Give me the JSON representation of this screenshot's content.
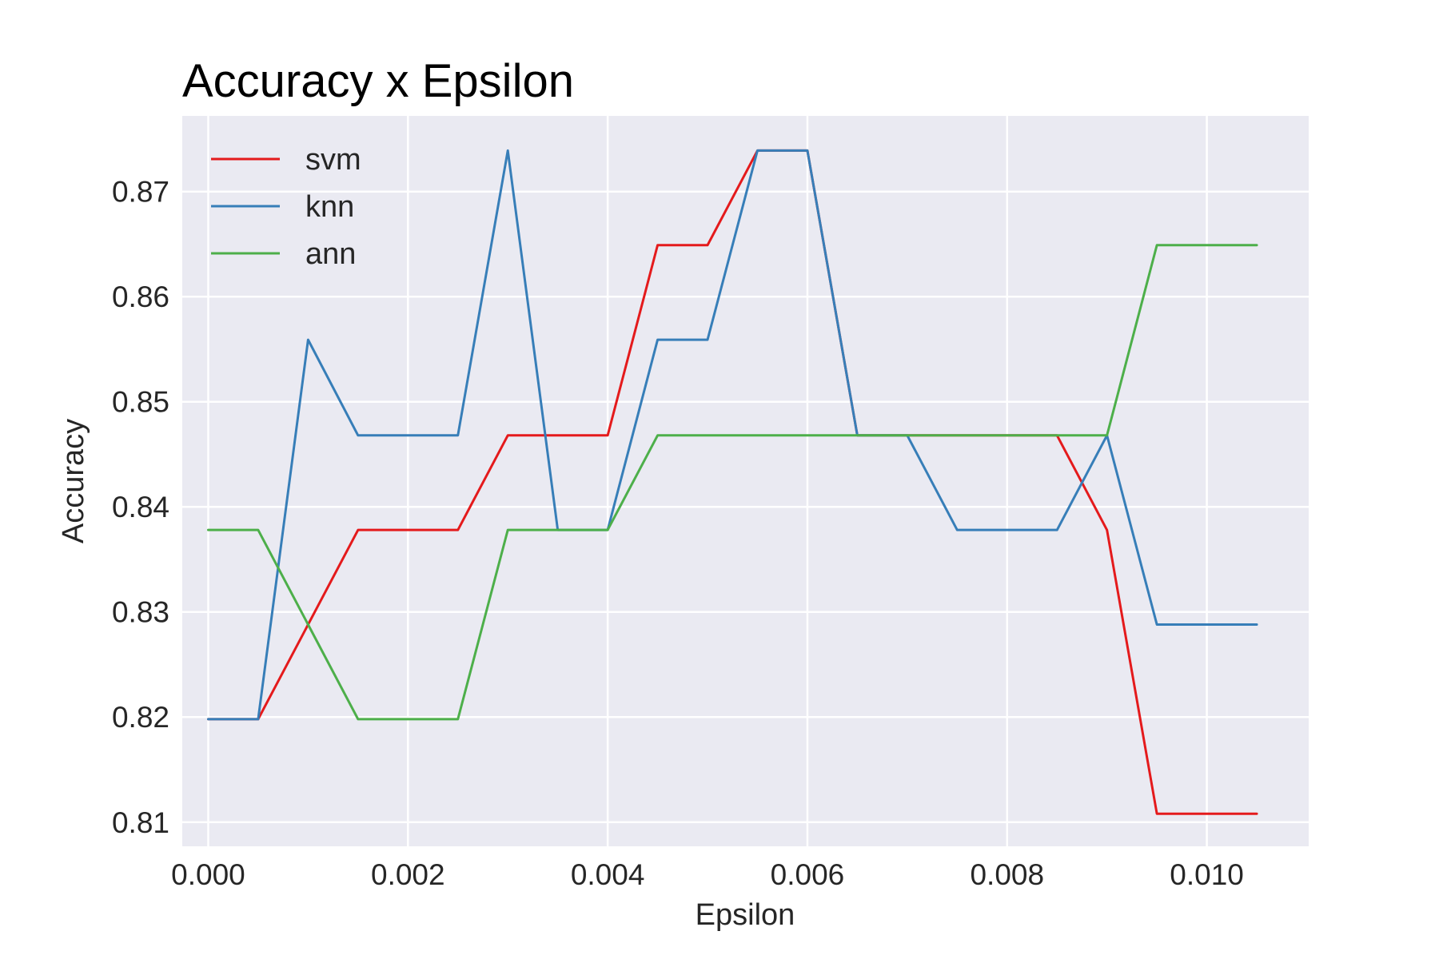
{
  "chart_data": {
    "type": "line",
    "title": "Accuracy x Epsilon",
    "xlabel": "Epsilon",
    "ylabel": "Accuracy",
    "xlim": [
      -0.00026,
      0.01102
    ],
    "ylim": [
      0.8077,
      0.8772
    ],
    "x_ticks": [
      0.0,
      0.002,
      0.004,
      0.006,
      0.008,
      0.01
    ],
    "x_tick_labels": [
      "0.000",
      "0.002",
      "0.004",
      "0.006",
      "0.008",
      "0.010"
    ],
    "y_ticks": [
      0.81,
      0.82,
      0.83,
      0.84,
      0.85,
      0.86,
      0.87
    ],
    "y_tick_labels": [
      "0.81",
      "0.82",
      "0.83",
      "0.84",
      "0.85",
      "0.86",
      "0.87"
    ],
    "grid": true,
    "legend_position": "top-left",
    "background": "#eaeaf2",
    "x": [
      0.0,
      0.0005,
      0.001,
      0.0015,
      0.002,
      0.0025,
      0.003,
      0.0035,
      0.004,
      0.0045,
      0.005,
      0.0055,
      0.006,
      0.0065,
      0.007,
      0.0075,
      0.008,
      0.0085,
      0.009,
      0.0095,
      0.01,
      0.0105
    ],
    "series": [
      {
        "name": "svm",
        "color": "#e41a1c",
        "values": [
          0.8198,
          0.8198,
          0.8288,
          0.8378,
          0.8378,
          0.8378,
          0.8468,
          0.8468,
          0.8468,
          0.8649,
          0.8649,
          0.8739,
          0.8739,
          0.8468,
          0.8468,
          0.8468,
          0.8468,
          0.8468,
          0.8378,
          0.8108,
          0.8108,
          0.8108
        ]
      },
      {
        "name": "knn",
        "color": "#377eb8",
        "values": [
          0.8198,
          0.8198,
          0.8559,
          0.8468,
          0.8468,
          0.8468,
          0.8739,
          0.8378,
          0.8378,
          0.8559,
          0.8559,
          0.8739,
          0.8739,
          0.8468,
          0.8468,
          0.8378,
          0.8378,
          0.8378,
          0.8468,
          0.8288,
          0.8288,
          0.8288
        ]
      },
      {
        "name": "ann",
        "color": "#4daf4a",
        "values": [
          0.8378,
          0.8378,
          0.8288,
          0.8198,
          0.8198,
          0.8198,
          0.8378,
          0.8378,
          0.8378,
          0.8468,
          0.8468,
          0.8468,
          0.8468,
          0.8468,
          0.8468,
          0.8468,
          0.8468,
          0.8468,
          0.8468,
          0.8649,
          0.8649,
          0.8649
        ]
      }
    ]
  }
}
